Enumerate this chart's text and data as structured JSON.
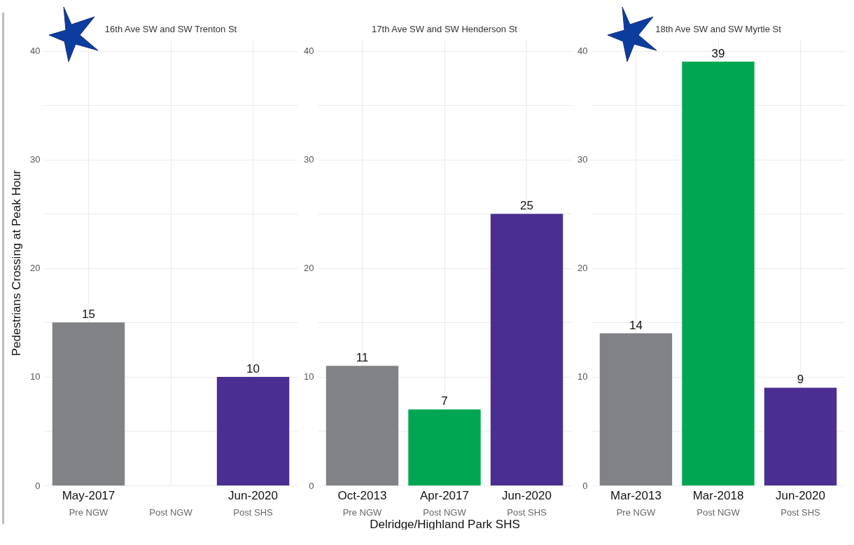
{
  "chart_data": [
    {
      "type": "bar",
      "title": "16th Ave SW and SW Trenton St",
      "categories": [
        "May-2017\nPre NGW",
        "Post NGW",
        "Jun-2020\nPost SHS"
      ],
      "values": [
        15,
        null,
        10
      ],
      "colors": [
        "#808285",
        "#00a651",
        "#4b2e91"
      ],
      "ylim": [
        0,
        41
      ],
      "yticks": [
        0,
        {
          "value": 5,
          "label": null
        },
        10,
        {
          "value": 15,
          "label": null
        },
        20,
        {
          "value": 25,
          "label": null
        },
        30,
        {
          "value": 35,
          "label": null
        },
        40
      ],
      "ylabel": "Pedestrians Crossing at Peak Hour",
      "grid": true,
      "data_labels": true
    },
    {
      "type": "bar",
      "title": "17th Ave SW and SW Henderson St",
      "categories": [
        "Oct-2013\nPre NGW",
        "Apr-2017\nPost NGW",
        "Jun-2020\nPost SHS"
      ],
      "values": [
        11,
        7,
        25
      ],
      "colors": [
        "#808285",
        "#00a651",
        "#4b2e91"
      ],
      "ylim": [
        0,
        41
      ],
      "yticks": [
        0,
        {
          "value": 5,
          "label": null
        },
        10,
        {
          "value": 15,
          "label": null
        },
        20,
        {
          "value": 25,
          "label": null
        },
        30,
        {
          "value": 35,
          "label": null
        },
        40
      ],
      "xlabel": "Delridge/Highland Park SHS",
      "grid": true,
      "data_labels": true
    },
    {
      "type": "bar",
      "title": "18th Ave SW and SW Myrtle St",
      "categories": [
        "Mar-2013\nPre NGW",
        "Mar-2018\nPost NGW",
        "Jun-2020\nPost SHS"
      ],
      "values": [
        14,
        39,
        9
      ],
      "colors": [
        "#808285",
        "#00a651",
        "#4b2e91"
      ],
      "ylim": [
        0,
        41
      ],
      "yticks": [
        0,
        {
          "value": 5,
          "label": null
        },
        10,
        {
          "value": 15,
          "label": null
        },
        20,
        {
          "value": 25,
          "label": null
        },
        30,
        {
          "value": 35,
          "label": null
        },
        40
      ],
      "grid": true,
      "data_labels": true
    }
  ]
}
